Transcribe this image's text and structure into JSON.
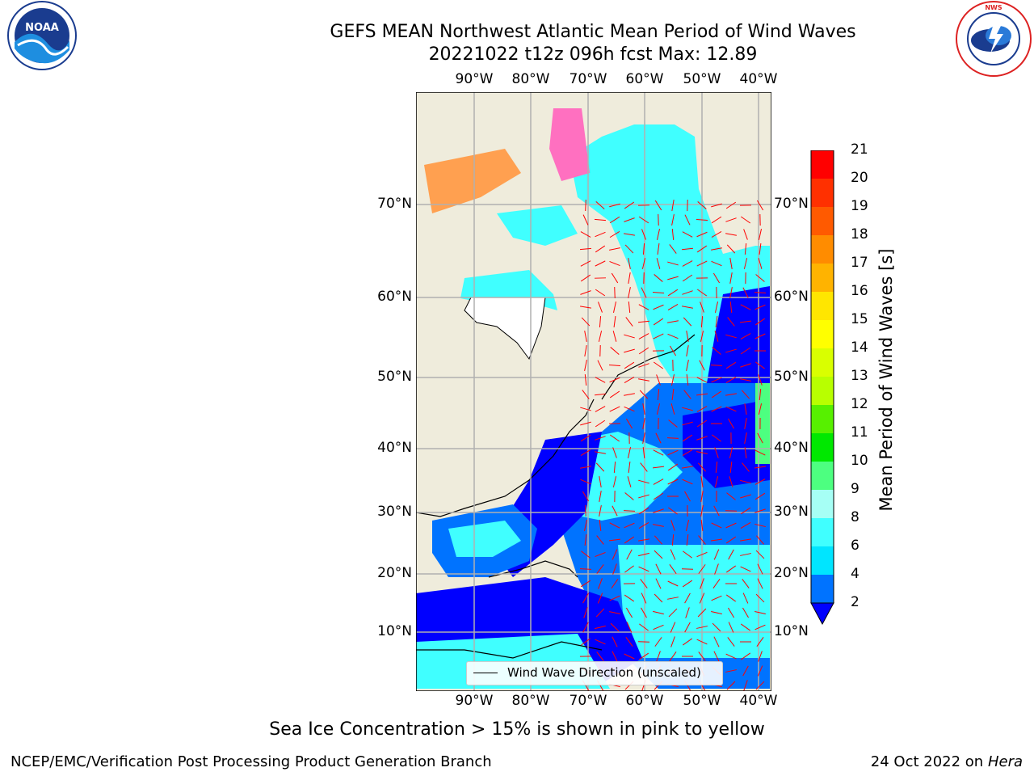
{
  "header": {
    "title_line1": "GEFS MEAN Northwest Atlantic Mean Period of Wind Waves",
    "title_line2": "20221022 t12z 096h fcst   Max: 12.89"
  },
  "logos": {
    "left": {
      "icon": "noaa-logo-icon",
      "text": "NOAA"
    },
    "right": {
      "icon": "national-weather-service-logo-icon",
      "text": "NATIONAL WEATHER SERVICE"
    }
  },
  "map": {
    "lon_labels": [
      "90°W",
      "80°W",
      "70°W",
      "60°W",
      "50°W",
      "40°W"
    ],
    "lat_labels": [
      "70°N",
      "60°N",
      "50°N",
      "40°N",
      "30°N",
      "20°N",
      "10°N"
    ],
    "legend_label": "Wind Wave Direction (unscaled)",
    "colors": {
      "land": "#efecdc",
      "arrow": "#ff0000",
      "grid": "#b0b0b0"
    }
  },
  "colorbar": {
    "label": "Mean Period of Wind Waves [s]",
    "ticks": [
      "2",
      "4",
      "6",
      "8",
      "9",
      "10",
      "11",
      "12",
      "13",
      "14",
      "15",
      "16",
      "17",
      "18",
      "19",
      "20",
      "21"
    ],
    "colors": [
      "#0000ff",
      "#0073ff",
      "#00e5ff",
      "#40ffff",
      "#a6fff5",
      "#4dff80",
      "#00e800",
      "#57f000",
      "#b8ff00",
      "#d9ff00",
      "#ffff00",
      "#ffe600",
      "#ffb300",
      "#ff8c00",
      "#ff5a00",
      "#ff3000",
      "#ff0000"
    ]
  },
  "note": "Sea Ice Concentration > 15% is shown in pink to yellow",
  "footer": {
    "left": "NCEP/EMC/Verification Post Processing Product Generation Branch",
    "right_prefix": "24 Oct 2022 on",
    "right_host": "Hera"
  }
}
